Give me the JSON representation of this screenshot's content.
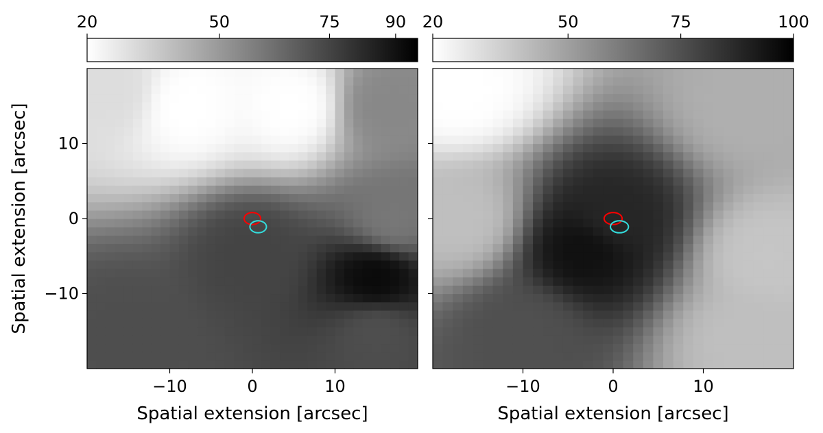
{
  "chart_data": [
    {
      "type": "heatmap",
      "xlabel": "Spatial extension [arcsec]",
      "ylabel": "Spatial extension [arcsec]",
      "xlim": [
        -20,
        20
      ],
      "ylim": [
        -20,
        20
      ],
      "xticks": [
        {
          "value": -10,
          "label": "−10"
        },
        {
          "value": 0,
          "label": "0"
        },
        {
          "value": 10,
          "label": "10"
        }
      ],
      "yticks": [
        {
          "value": -10,
          "label": "−10"
        },
        {
          "value": 0,
          "label": "0"
        },
        {
          "value": 10,
          "label": "10"
        }
      ],
      "colorbar": {
        "min": 20,
        "max": 95,
        "colormap": "gray_r",
        "ticks": [
          {
            "value": 20,
            "label": "20"
          },
          {
            "value": 50,
            "label": "50"
          },
          {
            "value": 75,
            "label": "75"
          },
          {
            "value": 90,
            "label": "90"
          }
        ]
      },
      "grid": false,
      "markers": [
        {
          "x": 0,
          "y": 0,
          "rx": 1.0,
          "ry": 0.8,
          "color": "#ff0000"
        },
        {
          "x": 0.7,
          "y": -1.1,
          "rx": 1.0,
          "ry": 0.8,
          "color": "#33dddd"
        }
      ],
      "sample_points": [
        {
          "x": -17,
          "y": 17,
          "v": 30
        },
        {
          "x": -8,
          "y": 15,
          "v": 20
        },
        {
          "x": 5,
          "y": 15,
          "v": 20
        },
        {
          "x": 16,
          "y": 15,
          "v": 55
        },
        {
          "x": 17,
          "y": 0,
          "v": 60
        },
        {
          "x": 0,
          "y": -5,
          "v": 75
        },
        {
          "x": 15,
          "y": -8,
          "v": 92
        },
        {
          "x": 15,
          "y": -15,
          "v": 72
        },
        {
          "x": -15,
          "y": -15,
          "v": 72
        }
      ]
    },
    {
      "type": "heatmap",
      "xlabel": "Spatial extension [arcsec]",
      "ylabel": "",
      "xlim": [
        -20,
        20
      ],
      "ylim": [
        -20,
        20
      ],
      "xticks": [
        {
          "value": -10,
          "label": "−10"
        },
        {
          "value": 0,
          "label": "0"
        },
        {
          "value": 10,
          "label": "10"
        }
      ],
      "yticks": [
        {
          "value": -10,
          "label": ""
        },
        {
          "value": 0,
          "label": ""
        },
        {
          "value": 10,
          "label": ""
        }
      ],
      "colorbar": {
        "min": 20,
        "max": 100,
        "colormap": "gray_r",
        "ticks": [
          {
            "value": 20,
            "label": "20"
          },
          {
            "value": 50,
            "label": "50"
          },
          {
            "value": 75,
            "label": "75"
          },
          {
            "value": 100,
            "label": "100"
          }
        ]
      },
      "grid": false,
      "markers": [
        {
          "x": 0,
          "y": 0,
          "rx": 1.0,
          "ry": 0.8,
          "color": "#ff0000"
        },
        {
          "x": 0.7,
          "y": -1.1,
          "rx": 1.0,
          "ry": 0.8,
          "color": "#33dddd"
        }
      ],
      "sample_points": [
        {
          "x": -17,
          "y": 17,
          "v": 20
        },
        {
          "x": 15,
          "y": 15,
          "v": 45
        },
        {
          "x": -17,
          "y": 0,
          "v": 40
        },
        {
          "x": -3,
          "y": -4,
          "v": 95
        },
        {
          "x": 0,
          "y": 0,
          "v": 88
        },
        {
          "x": 17,
          "y": -5,
          "v": 38
        },
        {
          "x": 15,
          "y": -16,
          "v": 40
        },
        {
          "x": -10,
          "y": -15,
          "v": 75
        }
      ]
    }
  ]
}
